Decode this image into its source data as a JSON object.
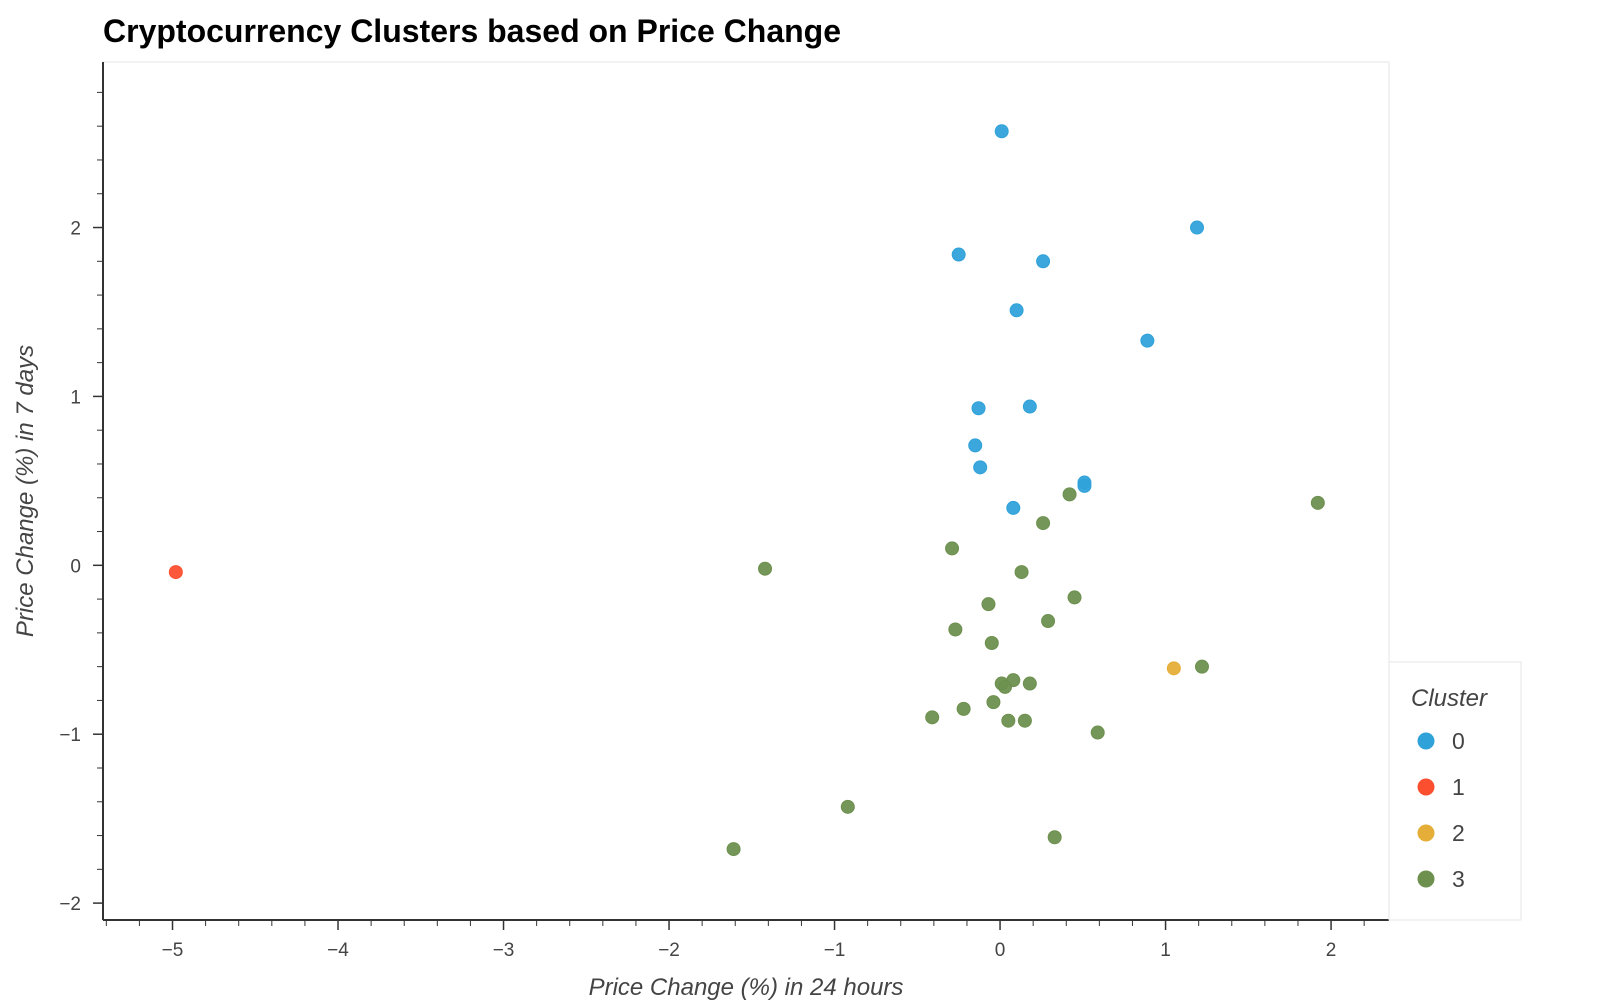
{
  "chart_data": {
    "type": "scatter",
    "title": "Cryptocurrency Clusters based on Price Change",
    "xlabel": "Price Change (%) in 24 hours",
    "ylabel": "Price Change (%) in 7 days",
    "xlim": [
      -5.42,
      2.35
    ],
    "ylim": [
      -2.1,
      2.98
    ],
    "xticks": [
      "−5",
      "−4",
      "−3",
      "−2",
      "−1",
      "0",
      "1",
      "2"
    ],
    "yticks": [
      "−2",
      "−1",
      "0",
      "1",
      "2"
    ],
    "grid": false,
    "legend": {
      "title": "Cluster",
      "position": "right-bottom"
    },
    "series": [
      {
        "name": "0",
        "color": "#30a2da",
        "points": [
          [
            0.01,
            2.57
          ],
          [
            1.19,
            2.0
          ],
          [
            -0.25,
            1.84
          ],
          [
            0.26,
            1.8
          ],
          [
            0.1,
            1.51
          ],
          [
            0.89,
            1.33
          ],
          [
            -0.13,
            0.93
          ],
          [
            0.18,
            0.94
          ],
          [
            -0.15,
            0.71
          ],
          [
            -0.12,
            0.58
          ],
          [
            0.51,
            0.49
          ],
          [
            0.51,
            0.47
          ],
          [
            0.08,
            0.34
          ]
        ]
      },
      {
        "name": "1",
        "color": "#fc4f30",
        "points": [
          [
            -4.98,
            -0.04
          ]
        ]
      },
      {
        "name": "2",
        "color": "#e5ae38",
        "points": [
          [
            1.05,
            -0.61
          ]
        ]
      },
      {
        "name": "3",
        "color": "#6d904f",
        "points": [
          [
            1.92,
            0.37
          ],
          [
            0.42,
            0.42
          ],
          [
            0.26,
            0.25
          ],
          [
            -0.29,
            0.1
          ],
          [
            -1.42,
            -0.02
          ],
          [
            0.13,
            -0.04
          ],
          [
            0.45,
            -0.19
          ],
          [
            -0.07,
            -0.23
          ],
          [
            0.29,
            -0.33
          ],
          [
            -0.27,
            -0.38
          ],
          [
            -0.05,
            -0.46
          ],
          [
            1.22,
            -0.6
          ],
          [
            0.08,
            -0.68
          ],
          [
            0.01,
            -0.7
          ],
          [
            0.18,
            -0.7
          ],
          [
            0.03,
            -0.72
          ],
          [
            -0.04,
            -0.81
          ],
          [
            -0.22,
            -0.85
          ],
          [
            -0.41,
            -0.9
          ],
          [
            0.05,
            -0.92
          ],
          [
            0.15,
            -0.92
          ],
          [
            0.59,
            -0.99
          ],
          [
            -0.92,
            -1.43
          ],
          [
            0.33,
            -1.61
          ],
          [
            -1.61,
            -1.68
          ]
        ]
      }
    ]
  }
}
